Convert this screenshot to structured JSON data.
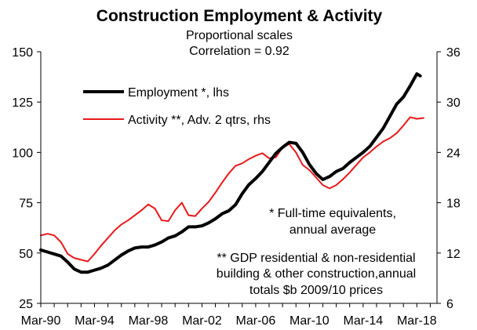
{
  "chart_data": {
    "type": "line",
    "title": "Construction Employment & Activity",
    "subtitle_lines": [
      "Proportional scales",
      "Correlation = 0.92"
    ],
    "x": {
      "start_year": 1990.0,
      "end_year": 2019.5,
      "tick_labels": [
        "Mar-90",
        "Mar-94",
        "Mar-98",
        "Mar-02",
        "Mar-06",
        "Mar-10",
        "Mar-14",
        "Mar-18"
      ],
      "tick_years": [
        1990,
        1994,
        1998,
        2002,
        2006,
        2010,
        2014,
        2018
      ]
    },
    "y_left": {
      "ylim": [
        25,
        150
      ],
      "ticks": [
        25,
        50,
        75,
        100,
        125,
        150
      ]
    },
    "y_right": {
      "ylim": [
        6,
        36
      ],
      "ticks": [
        6,
        12,
        18,
        24,
        30,
        36
      ]
    },
    "legend": {
      "placement": "top-left",
      "items": [
        {
          "label": "Employment *, lhs",
          "color": "#000000"
        },
        {
          "label": "Activity **, Adv. 2 qtrs, rhs",
          "color": "#e8191b"
        }
      ]
    },
    "annotations": {
      "note1_lines": [
        "* Full-time equivalents,",
        "annual average"
      ],
      "note2_lines": [
        "** GDP residential & non-residential",
        "building & other construction,annual",
        "totals $b 2009/10 prices"
      ]
    },
    "series": [
      {
        "name": "Employment *, lhs",
        "axis": "left",
        "color": "#000000",
        "points": [
          [
            1990.0,
            51.5
          ],
          [
            1990.5,
            50.5
          ],
          [
            1991.0,
            49.5
          ],
          [
            1991.5,
            48.5
          ],
          [
            1992.0,
            45.5
          ],
          [
            1992.5,
            42.0
          ],
          [
            1993.0,
            40.5
          ],
          [
            1993.5,
            40.5
          ],
          [
            1994.0,
            41.5
          ],
          [
            1994.5,
            42.5
          ],
          [
            1995.0,
            44.0
          ],
          [
            1995.5,
            46.5
          ],
          [
            1996.0,
            49.0
          ],
          [
            1996.5,
            51.0
          ],
          [
            1997.0,
            52.5
          ],
          [
            1997.5,
            53.0
          ],
          [
            1998.0,
            53.0
          ],
          [
            1998.5,
            54.0
          ],
          [
            1999.0,
            55.5
          ],
          [
            1999.5,
            57.5
          ],
          [
            2000.0,
            58.5
          ],
          [
            2000.5,
            60.5
          ],
          [
            2001.0,
            63.0
          ],
          [
            2001.5,
            63.0
          ],
          [
            2002.0,
            63.5
          ],
          [
            2002.5,
            65.0
          ],
          [
            2003.0,
            67.0
          ],
          [
            2003.5,
            69.5
          ],
          [
            2004.0,
            71.0
          ],
          [
            2004.5,
            74.0
          ],
          [
            2005.0,
            79.5
          ],
          [
            2005.5,
            84.0
          ],
          [
            2006.0,
            87.0
          ],
          [
            2006.5,
            90.5
          ],
          [
            2007.0,
            95.0
          ],
          [
            2007.5,
            99.5
          ],
          [
            2008.0,
            102.5
          ],
          [
            2008.5,
            105.0
          ],
          [
            2009.0,
            104.5
          ],
          [
            2009.5,
            100.0
          ],
          [
            2010.0,
            94.0
          ],
          [
            2010.5,
            89.5
          ],
          [
            2011.0,
            86.5
          ],
          [
            2011.5,
            88.0
          ],
          [
            2012.0,
            90.5
          ],
          [
            2012.5,
            92.0
          ],
          [
            2013.0,
            95.0
          ],
          [
            2013.5,
            97.5
          ],
          [
            2014.0,
            100.0
          ],
          [
            2014.5,
            103.0
          ],
          [
            2015.0,
            107.5
          ],
          [
            2015.5,
            112.0
          ],
          [
            2016.0,
            118.0
          ],
          [
            2016.5,
            124.0
          ],
          [
            2017.0,
            127.5
          ],
          [
            2017.5,
            133.0
          ],
          [
            2018.0,
            139.0
          ],
          [
            2018.25,
            138.0
          ]
        ]
      },
      {
        "name": "Activity **, Adv. 2 qtrs, rhs",
        "axis": "right",
        "color": "#e8191b",
        "points": [
          [
            1990.0,
            14.1
          ],
          [
            1990.5,
            14.3
          ],
          [
            1991.0,
            14.1
          ],
          [
            1991.5,
            13.3
          ],
          [
            1992.0,
            11.9
          ],
          [
            1992.5,
            11.4
          ],
          [
            1993.0,
            11.2
          ],
          [
            1993.5,
            11.0
          ],
          [
            1994.0,
            11.9
          ],
          [
            1994.5,
            12.9
          ],
          [
            1995.0,
            13.8
          ],
          [
            1995.5,
            14.7
          ],
          [
            1996.0,
            15.4
          ],
          [
            1996.5,
            15.9
          ],
          [
            1997.0,
            16.5
          ],
          [
            1997.5,
            17.1
          ],
          [
            1998.0,
            17.8
          ],
          [
            1998.5,
            17.3
          ],
          [
            1999.0,
            15.9
          ],
          [
            1999.5,
            15.8
          ],
          [
            2000.0,
            17.1
          ],
          [
            2000.5,
            18.0
          ],
          [
            2001.0,
            16.5
          ],
          [
            2001.5,
            16.4
          ],
          [
            2002.0,
            17.3
          ],
          [
            2002.5,
            18.1
          ],
          [
            2003.0,
            19.2
          ],
          [
            2003.5,
            20.4
          ],
          [
            2004.0,
            21.5
          ],
          [
            2004.5,
            22.4
          ],
          [
            2005.0,
            22.7
          ],
          [
            2005.5,
            23.2
          ],
          [
            2006.0,
            23.6
          ],
          [
            2006.5,
            23.9
          ],
          [
            2007.0,
            23.3
          ],
          [
            2007.5,
            23.4
          ],
          [
            2008.0,
            24.6
          ],
          [
            2008.5,
            25.0
          ],
          [
            2009.0,
            24.0
          ],
          [
            2009.5,
            22.5
          ],
          [
            2010.0,
            21.9
          ],
          [
            2010.5,
            21.0
          ],
          [
            2011.0,
            20.1
          ],
          [
            2011.5,
            19.7
          ],
          [
            2012.0,
            20.1
          ],
          [
            2012.5,
            20.8
          ],
          [
            2013.0,
            21.6
          ],
          [
            2013.5,
            22.5
          ],
          [
            2014.0,
            23.4
          ],
          [
            2014.5,
            24.0
          ],
          [
            2015.0,
            24.7
          ],
          [
            2015.5,
            25.3
          ],
          [
            2016.0,
            25.7
          ],
          [
            2016.5,
            26.3
          ],
          [
            2017.0,
            27.2
          ],
          [
            2017.5,
            28.2
          ],
          [
            2018.0,
            28.0
          ],
          [
            2018.5,
            28.1
          ]
        ]
      }
    ]
  }
}
